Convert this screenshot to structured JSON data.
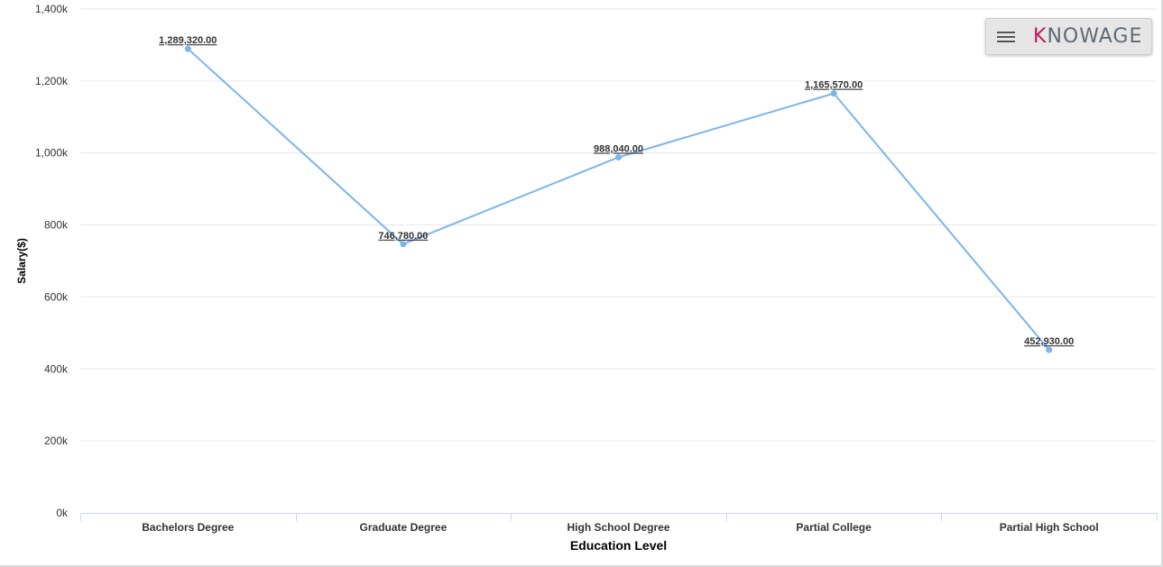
{
  "chart_data": {
    "type": "line",
    "categories": [
      "Bachelors Degree",
      "Graduate Degree",
      "High School Degree",
      "Partial College",
      "Partial High School"
    ],
    "series": [
      {
        "values": [
          1289320.0,
          746780.0,
          988040.0,
          1165570.0,
          452930.0
        ],
        "data_labels": [
          "1,289,320.00",
          "746,780.00",
          "988,040.00",
          "1,165,570.00",
          "452,930.00"
        ],
        "color": "#7cb5ec"
      }
    ],
    "xlabel": "Education Level",
    "ylabel": "Salary($)",
    "ylim": [
      0,
      1400000
    ],
    "yticks": [
      0,
      200000,
      400000,
      600000,
      800000,
      1000000,
      1200000,
      1400000
    ],
    "ytick_labels": [
      "0k",
      "200k",
      "400k",
      "600k",
      "800k",
      "1,000k",
      "1,200k",
      "1,400k"
    ],
    "grid": true,
    "legend": "none"
  },
  "branding": {
    "logo_text_prefix": "K",
    "logo_text_rest": "NOWAGE",
    "menu_icon": "hamburger-menu-icon"
  },
  "colors": {
    "series": "#7cb5ec",
    "grid": "#e6e6e6",
    "brand_accent": "#c2185b"
  }
}
